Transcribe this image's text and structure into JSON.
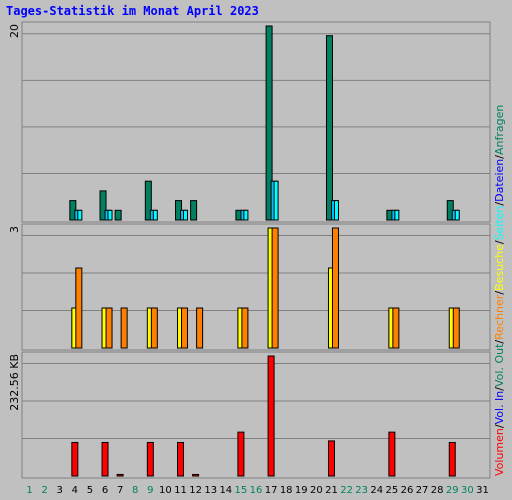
{
  "chart_data": {
    "type": "bar",
    "title": "Tages-Statistik im Monat April 2023",
    "categories": [
      "1",
      "2",
      "3",
      "4",
      "5",
      "6",
      "7",
      "8",
      "9",
      "10",
      "11",
      "12",
      "13",
      "14",
      "15",
      "16",
      "17",
      "18",
      "19",
      "20",
      "21",
      "22",
      "23",
      "24",
      "25",
      "26",
      "27",
      "28",
      "29",
      "30",
      "31"
    ],
    "weekend_days": [
      "1",
      "2",
      "8",
      "9",
      "15",
      "16",
      "22",
      "23",
      "29",
      "30"
    ],
    "panels": [
      {
        "id": "requests",
        "ymax_label": "20",
        "ymax": 20,
        "series": [
          {
            "name": "Anfragen",
            "color": "#008060",
            "values": [
              0,
              0,
              0,
              2,
              0,
              3,
              1,
              0,
              4,
              0,
              2,
              2,
              0,
              0,
              1,
              0,
              20,
              0,
              0,
              0,
              19,
              0,
              0,
              0,
              1,
              0,
              0,
              0,
              2,
              0,
              0
            ]
          },
          {
            "name": "Dateien",
            "color": "#00c0ff",
            "values": [
              0,
              0,
              0,
              1,
              0,
              1,
              0,
              0,
              1,
              0,
              1,
              0,
              0,
              0,
              1,
              0,
              4,
              0,
              0,
              0,
              2,
              0,
              0,
              0,
              1,
              0,
              0,
              0,
              1,
              0,
              0
            ]
          },
          {
            "name": "Seiten",
            "color": "#00ffff",
            "values": [
              0,
              0,
              0,
              1,
              0,
              1,
              0,
              0,
              1,
              0,
              1,
              0,
              0,
              0,
              1,
              0,
              4,
              0,
              0,
              0,
              2,
              0,
              0,
              0,
              1,
              0,
              0,
              0,
              1,
              0,
              0
            ]
          }
        ]
      },
      {
        "id": "visits",
        "ymax_label": "3",
        "ymax": 3,
        "series": [
          {
            "name": "Besuche",
            "color": "#ffff00",
            "values": [
              0,
              0,
              0,
              1,
              0,
              1,
              0,
              0,
              1,
              0,
              1,
              0,
              0,
              0,
              1,
              0,
              3,
              0,
              0,
              0,
              2,
              0,
              0,
              0,
              1,
              0,
              0,
              0,
              1,
              0,
              0
            ]
          },
          {
            "name": "Rechner",
            "color": "#ff8000",
            "values": [
              0,
              0,
              0,
              2,
              0,
              1,
              1,
              0,
              1,
              0,
              1,
              1,
              0,
              0,
              1,
              0,
              3,
              0,
              0,
              0,
              3,
              0,
              0,
              0,
              1,
              0,
              0,
              0,
              1,
              0,
              0
            ]
          }
        ]
      },
      {
        "id": "volume",
        "ymax_label": "232.56 KB",
        "ymax": 232.56,
        "unit": "KB",
        "series": [
          {
            "name": "Volumen",
            "color": "#ff0000",
            "values": [
              0,
              0,
              0,
              65,
              0,
              65,
              3,
              0,
              65,
              0,
              65,
              3,
              0,
              0,
              85,
              0,
              232.56,
              0,
              0,
              0,
              68,
              0,
              0,
              0,
              85,
              0,
              0,
              0,
              65,
              0,
              0
            ]
          }
        ]
      }
    ],
    "legend": [
      {
        "text": "Volumen",
        "color": "#ff0000"
      },
      {
        "text": "/",
        "color": "#000000"
      },
      {
        "text": "Vol. In",
        "color": "#0000ff"
      },
      {
        "text": "/",
        "color": "#000000"
      },
      {
        "text": "Vol. Out",
        "color": "#008060"
      },
      {
        "text": "/",
        "color": "#000000"
      },
      {
        "text": "Rechner",
        "color": "#ff8000"
      },
      {
        "text": "/",
        "color": "#000000"
      },
      {
        "text": "Besuche",
        "color": "#ffff00"
      },
      {
        "text": "/",
        "color": "#000000"
      },
      {
        "text": "Seiten",
        "color": "#00ffff"
      },
      {
        "text": "/",
        "color": "#000000"
      },
      {
        "text": "Dateien",
        "color": "#0000ff"
      },
      {
        "text": "/",
        "color": "#000000"
      },
      {
        "text": "Anfragen",
        "color": "#008060"
      }
    ],
    "grid": true
  },
  "colors": {
    "background": "#c0c0c0",
    "title": "#0000ff",
    "weekday_label": "#000000",
    "weekend_label": "#008060",
    "gridline": "#808080"
  }
}
